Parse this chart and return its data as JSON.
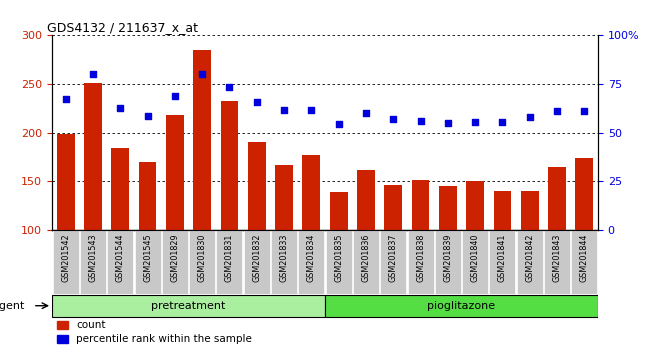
{
  "title": "GDS4132 / 211637_x_at",
  "categories": [
    "GSM201542",
    "GSM201543",
    "GSM201544",
    "GSM201545",
    "GSM201829",
    "GSM201830",
    "GSM201831",
    "GSM201832",
    "GSM201833",
    "GSM201834",
    "GSM201835",
    "GSM201836",
    "GSM201837",
    "GSM201838",
    "GSM201839",
    "GSM201840",
    "GSM201841",
    "GSM201842",
    "GSM201843",
    "GSM201844"
  ],
  "bar_values": [
    199,
    251,
    184,
    170,
    218,
    285,
    233,
    190,
    167,
    177,
    139,
    162,
    146,
    151,
    145,
    150,
    140,
    140,
    165,
    174
  ],
  "scatter_values": [
    235,
    260,
    225,
    217,
    238,
    260,
    247,
    232,
    223,
    223,
    209,
    220,
    214,
    212,
    210,
    211,
    211,
    216,
    222,
    222
  ],
  "bar_color": "#cc2200",
  "scatter_color_hex": "#0000dd",
  "ylim_left": [
    100,
    300
  ],
  "ylim_right": [
    0,
    100
  ],
  "yticks_left": [
    100,
    150,
    200,
    250,
    300
  ],
  "yticks_right": [
    0,
    25,
    50,
    75,
    100
  ],
  "ytick_labels_right": [
    "0",
    "25",
    "50",
    "75",
    "100%"
  ],
  "group1_display": "pretreatment",
  "group2_display": "pioglitazone",
  "agent_label": "agent",
  "legend_bar": "count",
  "legend_scatter": "percentile rank within the sample",
  "group1_color": "#aaeea0",
  "group2_color": "#55dd44",
  "xtick_bg_color": "#c8c8c8"
}
